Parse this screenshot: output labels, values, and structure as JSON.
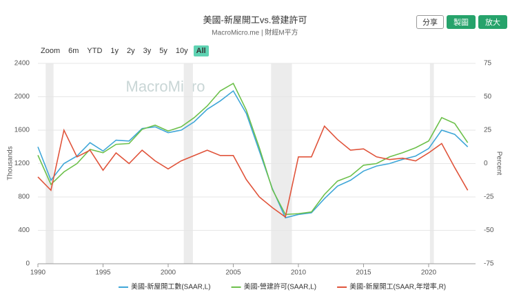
{
  "toolbar": {
    "share": "分享",
    "draw": "製圖",
    "expand": "放大"
  },
  "range_selector": {
    "label": "Zoom",
    "options": [
      "6m",
      "YTD",
      "1y",
      "2y",
      "3y",
      "5y",
      "10y",
      "All"
    ],
    "active": 7
  },
  "watermark": "MacroMicro",
  "chart_data": {
    "type": "line",
    "title": "美國-新屋開工vs.營建許可",
    "subtitle": "MacroMicro.me | 財經M平方",
    "y_label": "Thousands",
    "y2_label": "Percent",
    "x": [
      1990,
      1991,
      1992,
      1993,
      1994,
      1995,
      1996,
      1997,
      1998,
      1999,
      2000,
      2001,
      2002,
      2003,
      2004,
      2005,
      2006,
      2007,
      2008,
      2009,
      2010,
      2011,
      2012,
      2013,
      2014,
      2015,
      2016,
      2017,
      2018,
      2019,
      2020,
      2021,
      2022,
      2023
    ],
    "xlim": [
      1990,
      2023.6
    ],
    "xticks": [
      1990,
      1995,
      2000,
      2005,
      2010,
      2015,
      2020
    ],
    "ylim": [
      0,
      2400
    ],
    "yticks": [
      0,
      400,
      800,
      1200,
      1600,
      2000,
      2400
    ],
    "y2lim": [
      -75,
      75
    ],
    "y2ticks": [
      -75,
      -50,
      -25,
      0,
      25,
      50,
      75
    ],
    "grid": true,
    "recessions": [
      [
        1990.6,
        1991.2
      ],
      [
        2001.2,
        2001.9
      ],
      [
        2007.9,
        2009.5
      ],
      [
        2020.1,
        2020.4
      ]
    ],
    "series": [
      {
        "name": "美國-新屋開工數(SAAR,L)",
        "color": "#3ea6d8",
        "axis": "y",
        "values": [
          1400,
          1000,
          1200,
          1290,
          1450,
          1350,
          1480,
          1470,
          1620,
          1640,
          1570,
          1600,
          1700,
          1850,
          1950,
          2070,
          1800,
          1350,
          900,
          550,
          590,
          610,
          780,
          930,
          1000,
          1110,
          1170,
          1200,
          1250,
          1290,
          1380,
          1600,
          1550,
          1400
        ]
      },
      {
        "name": "美國-營建許可(SAAR,L)",
        "color": "#6cc04a",
        "axis": "y",
        "values": [
          1300,
          950,
          1100,
          1200,
          1370,
          1330,
          1430,
          1440,
          1610,
          1660,
          1590,
          1640,
          1750,
          1890,
          2070,
          2160,
          1840,
          1390,
          890,
          590,
          600,
          620,
          830,
          990,
          1050,
          1180,
          1200,
          1280,
          1330,
          1390,
          1470,
          1750,
          1680,
          1450
        ]
      },
      {
        "name": "美國-新屋開工(SAAR,年增率,R)",
        "color": "#e0533a",
        "axis": "y2",
        "values": [
          -10,
          -20,
          25,
          5,
          10,
          -5,
          8,
          0,
          10,
          2,
          -4,
          2,
          6,
          10,
          6,
          6,
          -12,
          -25,
          -33,
          -40,
          5,
          5,
          28,
          18,
          10,
          11,
          5,
          3,
          4,
          2,
          8,
          15,
          -3,
          -20
        ]
      }
    ]
  }
}
